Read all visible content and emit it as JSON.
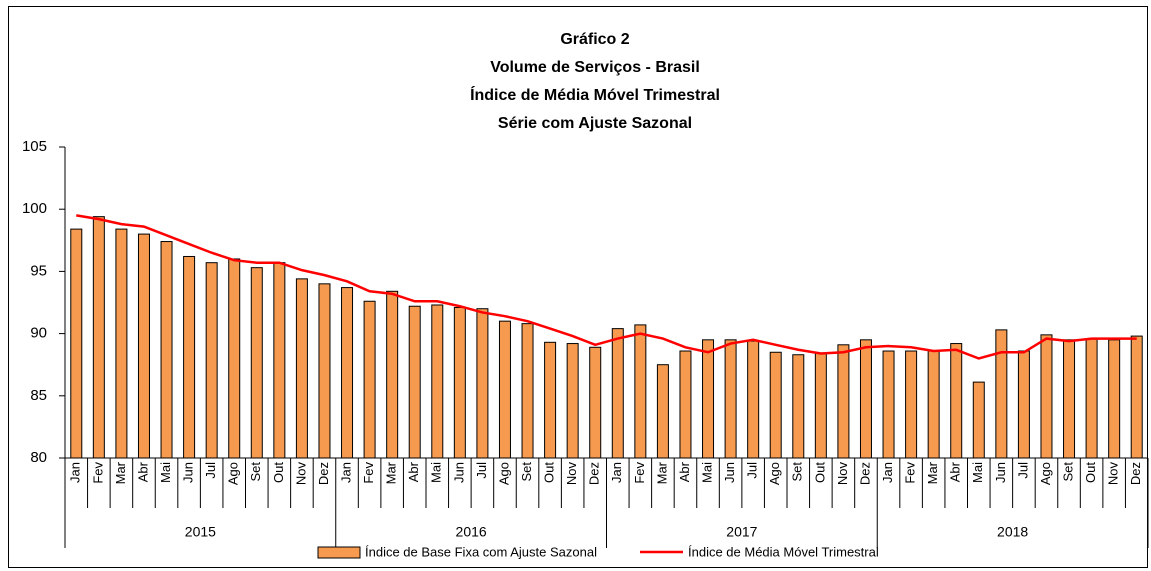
{
  "chart_data": {
    "type": "bar",
    "title_lines": [
      "Gráfico 2",
      "Volume de Serviços - Brasil",
      "Índice de Média Móvel Trimestral",
      "Série com Ajuste Sazonal"
    ],
    "categories": [
      "Jan",
      "Fev",
      "Mar",
      "Abr",
      "Mai",
      "Jun",
      "Jul",
      "Ago",
      "Set",
      "Out",
      "Nov",
      "Dez",
      "Jan",
      "Fev",
      "Mar",
      "Abr",
      "Mai",
      "Jun",
      "Jul",
      "Ago",
      "Set",
      "Out",
      "Nov",
      "Dez",
      "Jan",
      "Fev",
      "Mar",
      "Abr",
      "Mai",
      "Jun",
      "Jul",
      "Ago",
      "Set",
      "Out",
      "Nov",
      "Dez",
      "Jan",
      "Fev",
      "Mar",
      "Abr",
      "Mai",
      "Jun",
      "Jul",
      "Ago",
      "Set",
      "Out",
      "Nov",
      "Dez"
    ],
    "years": [
      "2015",
      "2016",
      "2017",
      "2018"
    ],
    "series": [
      {
        "name": "Índice de Base Fixa com Ajuste Sazonal",
        "type": "bar",
        "color": "#f59a4f",
        "values": [
          98.4,
          99.4,
          98.4,
          98.0,
          97.4,
          96.2,
          95.7,
          96.0,
          95.3,
          95.7,
          94.4,
          94.0,
          93.7,
          92.6,
          93.4,
          92.2,
          92.3,
          92.1,
          92.0,
          91.0,
          90.8,
          89.3,
          89.2,
          88.9,
          90.4,
          90.7,
          87.5,
          88.6,
          89.5,
          89.5,
          89.4,
          88.5,
          88.3,
          88.4,
          89.1,
          89.5,
          88.6,
          88.6,
          88.6,
          89.2,
          86.1,
          90.3,
          88.6,
          89.9,
          89.5,
          89.6,
          89.5,
          89.8
        ]
      },
      {
        "name": "Índice de Média Móvel Trimestral",
        "type": "line",
        "color": "#ff0000",
        "values": [
          99.5,
          99.2,
          98.8,
          98.6,
          97.9,
          97.2,
          96.5,
          95.9,
          95.7,
          95.7,
          95.1,
          94.7,
          94.2,
          93.4,
          93.2,
          92.6,
          92.6,
          92.2,
          91.7,
          91.4,
          91.0,
          90.4,
          89.8,
          89.1,
          89.6,
          90.0,
          89.6,
          88.9,
          88.5,
          89.2,
          89.5,
          89.1,
          88.7,
          88.4,
          88.5,
          88.9,
          89.0,
          88.9,
          88.6,
          88.7,
          88.0,
          88.5,
          88.5,
          89.6,
          89.4,
          89.6,
          89.6,
          89.6
        ]
      }
    ],
    "ylim": [
      80,
      105
    ],
    "yticks": [
      80,
      85,
      90,
      95,
      100,
      105
    ],
    "legend": "bottom"
  }
}
